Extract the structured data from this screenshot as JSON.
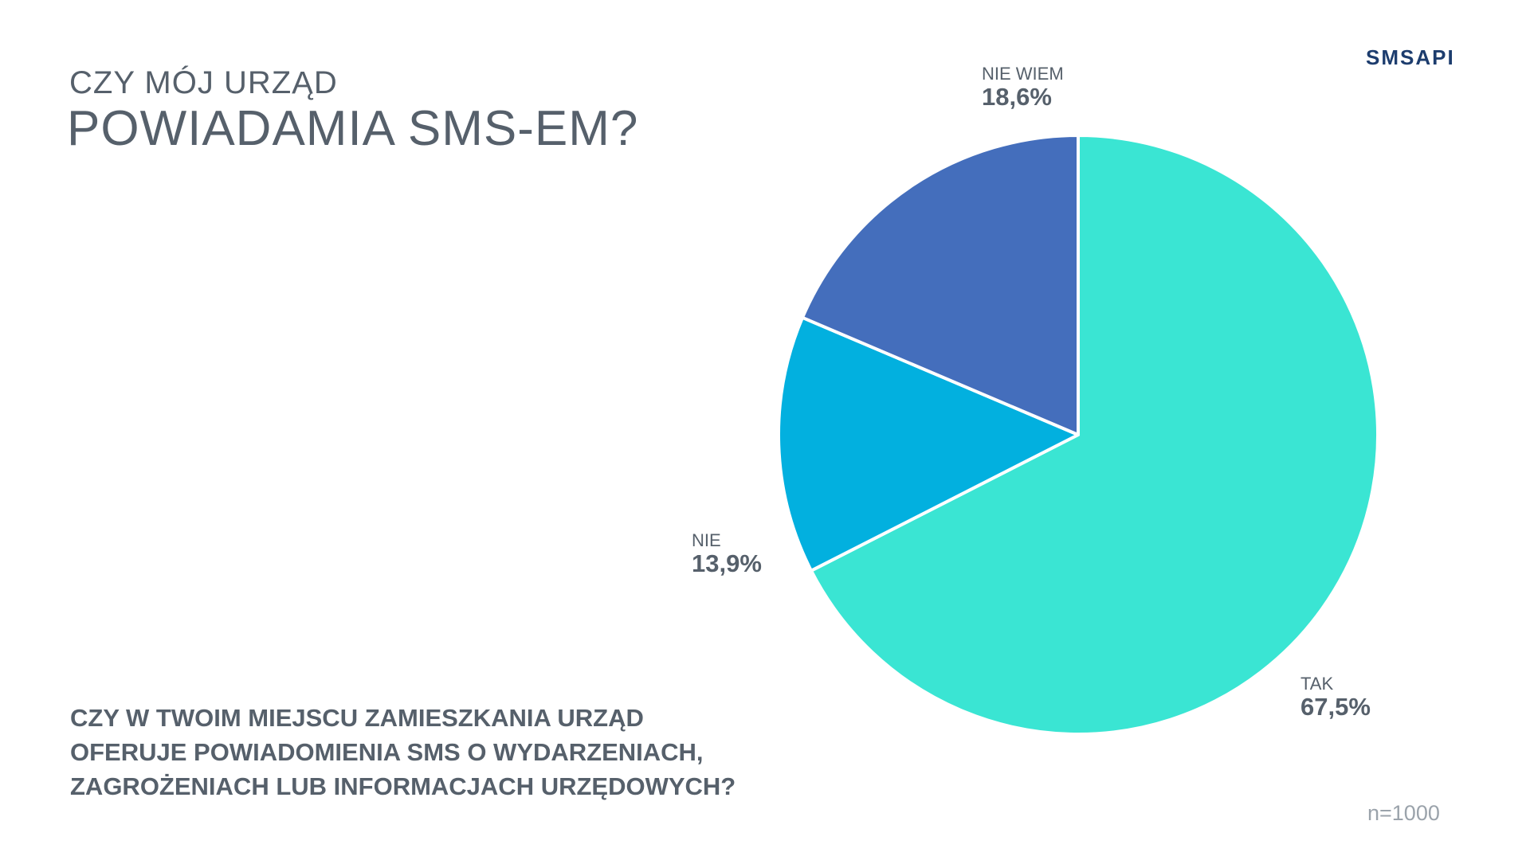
{
  "title": {
    "line1": "CZY MÓJ URZĄD",
    "line2": "POWIADAMIA SMS-EM?"
  },
  "logo": "SMSAPI",
  "question": {
    "lines": [
      "CZY W TWOIM MIEJSCU ZAMIESZKANIA URZĄD",
      "OFERUJE POWIADOMIENIA SMS O WYDARZENIACH,",
      "ZAGROŻENIACH LUB INFORMACJACH URZĘDOWYCH?"
    ]
  },
  "sample_size": "n=1000",
  "chart_data": {
    "type": "pie",
    "start": "12 o'clock",
    "direction": "clockwise",
    "slices": [
      {
        "label": "TAK",
        "value": 67.5,
        "value_label": "67,5%",
        "color": "#3ae5d3"
      },
      {
        "label": "NIE",
        "value": 13.9,
        "value_label": "13,9%",
        "color": "#02b0df"
      },
      {
        "label": "NIE WIEM",
        "value": 18.6,
        "value_label": "18,6%",
        "color": "#446ebc"
      }
    ],
    "slice_border_color": "#ffffff"
  }
}
